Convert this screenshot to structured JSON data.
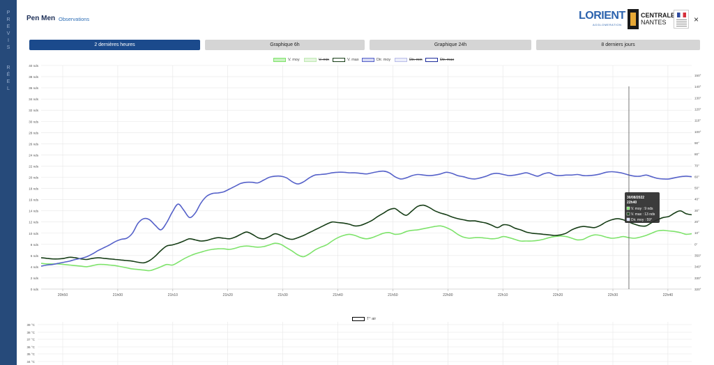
{
  "sidebar": {
    "label1": "PREVIS",
    "label2": "RÉEL"
  },
  "header": {
    "title": "Pen Men",
    "subtitle": "Observations",
    "logo_lorient": "LORIENT",
    "logo_lorient_sub": "AGGLOMERATION",
    "logo_centrale_1": "CENTRALE",
    "logo_centrale_2": "NANTES",
    "close_label": "×"
  },
  "tabs": [
    {
      "label": "2 dernières heures",
      "active": true
    },
    {
      "label": "Graphique 6h",
      "active": false
    },
    {
      "label": "Graphique 24h",
      "active": false
    },
    {
      "label": "8 derniers jours",
      "active": false
    }
  ],
  "chart_data": [
    {
      "type": "line",
      "legend_placement": "top-center",
      "grid": true,
      "x_tick_labels": [
        "20h50",
        "21h00",
        "21h10",
        "21h20",
        "21h30",
        "21h40",
        "21h50",
        "22h00",
        "22h10",
        "22h20",
        "22h30",
        "22h40"
      ],
      "y_left": {
        "unit": "nds",
        "ylim": [
          0,
          40
        ],
        "ticks": [
          0,
          2,
          4,
          6,
          8,
          10,
          12,
          14,
          16,
          18,
          20,
          22,
          24,
          26,
          28,
          30,
          32,
          34,
          36,
          38,
          40
        ],
        "tick_labels": [
          "0 nds",
          "2 nds",
          "4 nds",
          "6 nds",
          "8 nds",
          "10 nds",
          "12 nds",
          "14 nds",
          "16 nds",
          "18 nds",
          "20 nds",
          "22 nds",
          "24 nds",
          "26 nds",
          "28 nds",
          "30 nds",
          "32 nds",
          "34 nds",
          "36 nds",
          "38 nds",
          "40 nds"
        ]
      },
      "y_right": {
        "unit": "°",
        "tick_labels": [
          "320°",
          "330°",
          "340°",
          "350°",
          "0°",
          "10°",
          "20°",
          "30°",
          "40°",
          "50°",
          "60°",
          "70°",
          "80°",
          "90°",
          "100°",
          "110°",
          "120°",
          "130°",
          "140°",
          "150°"
        ]
      },
      "legend": [
        {
          "name": "V. moy",
          "color": "#7ee36b",
          "fill": "#c8f2bf",
          "hidden": false
        },
        {
          "name": "V. min",
          "color": "#bfe9b3",
          "fill": "#e4f5de",
          "hidden": true
        },
        {
          "name": "V. max",
          "color": "#163d16",
          "fill": "#ffffff",
          "hidden": false
        },
        {
          "name": "Dir. moy",
          "color": "#5561c9",
          "fill": "#d4d8f3",
          "hidden": false
        },
        {
          "name": "Dir. min",
          "color": "#b9bde9",
          "fill": "#eceefa",
          "hidden": true
        },
        {
          "name": "Dir. max",
          "color": "#1b2a9c",
          "fill": "#ffffff",
          "hidden": true
        }
      ],
      "series": [
        {
          "name": "V. moy",
          "color": "#7ee36b",
          "x": [
            0,
            1,
            2,
            3,
            4,
            5,
            6,
            7,
            8,
            9,
            10,
            11,
            12,
            13,
            14,
            15,
            16,
            17,
            18,
            19,
            20,
            21,
            22,
            23,
            24,
            25,
            26,
            27,
            28,
            29,
            30,
            31,
            32,
            33,
            34,
            35,
            36,
            37,
            38,
            39,
            40,
            41,
            42,
            43,
            44,
            45,
            46,
            47,
            48,
            49,
            50,
            51,
            52,
            53,
            54,
            55,
            56,
            57,
            58,
            59,
            60,
            61,
            62,
            63,
            64,
            65,
            66,
            67,
            68,
            69,
            70,
            71,
            72,
            73,
            74,
            75,
            76,
            77,
            78,
            79,
            80,
            81,
            82,
            83,
            84,
            85,
            86,
            87,
            88,
            89,
            90,
            91,
            92,
            93,
            94,
            95,
            96,
            97,
            98,
            99,
            100,
            101,
            102,
            103,
            104,
            105,
            106,
            107,
            108,
            109,
            110,
            111,
            112,
            113,
            114
          ],
          "values": [
            4.6,
            4.5,
            4.5,
            4.5,
            4.4,
            4.3,
            4.2,
            4.1,
            4.0,
            4.2,
            4.4,
            4.4,
            4.3,
            4.2,
            4.0,
            3.8,
            3.6,
            3.5,
            3.4,
            3.3,
            3.6,
            4.0,
            4.4,
            4.3,
            4.8,
            5.4,
            5.9,
            6.3,
            6.6,
            6.9,
            7.1,
            7.2,
            7.2,
            7.1,
            7.3,
            7.6,
            7.7,
            7.6,
            7.5,
            7.6,
            7.9,
            8.2,
            8.0,
            7.4,
            6.8,
            6.1,
            5.8,
            6.3,
            7.0,
            7.5,
            7.9,
            8.6,
            9.2,
            9.6,
            9.8,
            9.6,
            9.2,
            9.0,
            9.2,
            9.6,
            10.0,
            10.1,
            9.8,
            9.9,
            10.3,
            10.5,
            10.6,
            10.8,
            11.0,
            11.2,
            11.3,
            11.0,
            10.5,
            9.8,
            9.3,
            9.1,
            9.2,
            9.2,
            9.1,
            9.0,
            9.1,
            9.4,
            9.2,
            8.9,
            8.6,
            8.6,
            8.6,
            8.7,
            8.9,
            9.2,
            9.4,
            9.5,
            9.4,
            9.1,
            8.8,
            8.9,
            9.4,
            9.7,
            9.6,
            9.3,
            9.1,
            9.2,
            9.4,
            9.2,
            9.1,
            9.3,
            9.6,
            10.0,
            10.4,
            10.5,
            10.4,
            10.3,
            10.1,
            9.8,
            9.9
          ]
        },
        {
          "name": "V. max",
          "color": "#163d16",
          "x": [
            0,
            1,
            2,
            3,
            4,
            5,
            6,
            7,
            8,
            9,
            10,
            11,
            12,
            13,
            14,
            15,
            16,
            17,
            18,
            19,
            20,
            21,
            22,
            23,
            24,
            25,
            26,
            27,
            28,
            29,
            30,
            31,
            32,
            33,
            34,
            35,
            36,
            37,
            38,
            39,
            40,
            41,
            42,
            43,
            44,
            45,
            46,
            47,
            48,
            49,
            50,
            51,
            52,
            53,
            54,
            55,
            56,
            57,
            58,
            59,
            60,
            61,
            62,
            63,
            64,
            65,
            66,
            67,
            68,
            69,
            70,
            71,
            72,
            73,
            74,
            75,
            76,
            77,
            78,
            79,
            80,
            81,
            82,
            83,
            84,
            85,
            86,
            87,
            88,
            89,
            90,
            91,
            92,
            93,
            94,
            95,
            96,
            97,
            98,
            99,
            100,
            101,
            102,
            103,
            104,
            105,
            106,
            107,
            108,
            109,
            110,
            111,
            112,
            113,
            114
          ],
          "values": [
            5.6,
            5.5,
            5.4,
            5.4,
            5.5,
            5.7,
            5.6,
            5.4,
            5.3,
            5.5,
            5.6,
            5.5,
            5.4,
            5.3,
            5.2,
            5.1,
            5.0,
            4.8,
            4.7,
            5.1,
            5.9,
            6.9,
            7.7,
            7.9,
            8.2,
            8.6,
            9.0,
            8.8,
            8.6,
            8.7,
            9.0,
            9.2,
            9.1,
            9.0,
            9.3,
            9.8,
            10.2,
            9.8,
            9.2,
            9.0,
            9.4,
            9.9,
            9.6,
            9.1,
            8.9,
            9.2,
            9.6,
            10.1,
            10.6,
            11.1,
            11.6,
            12.0,
            11.9,
            11.8,
            11.6,
            11.3,
            11.4,
            11.8,
            12.3,
            13.0,
            13.6,
            14.2,
            14.4,
            13.7,
            13.2,
            14.0,
            14.8,
            15.0,
            14.6,
            14.0,
            13.6,
            13.3,
            12.9,
            12.6,
            12.4,
            12.2,
            12.2,
            12.0,
            11.8,
            11.4,
            11.0,
            11.5,
            11.4,
            10.9,
            10.6,
            10.2,
            10.0,
            9.9,
            9.8,
            9.7,
            9.6,
            9.7,
            10.0,
            10.6,
            11.0,
            11.2,
            11.1,
            11.0,
            11.4,
            12.0,
            12.4,
            12.6,
            12.4,
            12.0,
            11.6,
            11.3,
            11.3,
            11.9,
            12.4,
            12.8,
            13.0,
            13.6,
            14.0,
            13.5,
            13.3
          ]
        },
        {
          "name": "Dir. moy",
          "color": "#5561c9",
          "x": [
            0,
            1,
            2,
            3,
            4,
            5,
            6,
            7,
            8,
            9,
            10,
            11,
            12,
            13,
            14,
            15,
            16,
            17,
            18,
            19,
            20,
            21,
            22,
            23,
            24,
            25,
            26,
            27,
            28,
            29,
            30,
            31,
            32,
            33,
            34,
            35,
            36,
            37,
            38,
            39,
            40,
            41,
            42,
            43,
            44,
            45,
            46,
            47,
            48,
            49,
            50,
            51,
            52,
            53,
            54,
            55,
            56,
            57,
            58,
            59,
            60,
            61,
            62,
            63,
            64,
            65,
            66,
            67,
            68,
            69,
            70,
            71,
            72,
            73,
            74,
            75,
            76,
            77,
            78,
            79,
            80,
            81,
            82,
            83,
            84,
            85,
            86,
            87,
            88,
            89,
            90,
            91,
            92,
            93,
            94,
            95,
            96,
            97,
            98,
            99,
            100,
            101,
            102,
            103,
            104,
            105,
            106,
            107,
            108,
            109,
            110,
            111,
            112,
            113,
            114
          ],
          "values": [
            4.1,
            4.3,
            4.4,
            4.6,
            4.8,
            5.0,
            5.3,
            5.5,
            5.8,
            6.3,
            6.9,
            7.4,
            7.9,
            8.5,
            8.9,
            9.1,
            10.0,
            11.8,
            12.6,
            12.4,
            11.4,
            10.6,
            11.9,
            13.8,
            15.2,
            14.1,
            12.8,
            13.6,
            15.4,
            16.6,
            17.1,
            17.2,
            17.4,
            17.9,
            18.4,
            18.9,
            19.1,
            19.1,
            19.0,
            19.5,
            20.0,
            20.2,
            20.2,
            19.9,
            19.2,
            18.8,
            19.2,
            19.9,
            20.4,
            20.5,
            20.6,
            20.8,
            20.9,
            20.9,
            20.8,
            20.8,
            20.7,
            20.6,
            20.8,
            21.0,
            21.1,
            20.8,
            20.1,
            19.7,
            19.9,
            20.3,
            20.5,
            20.4,
            20.3,
            20.4,
            20.6,
            20.9,
            20.7,
            20.3,
            20.1,
            19.8,
            19.7,
            19.9,
            20.2,
            20.6,
            20.7,
            20.5,
            20.3,
            20.4,
            20.6,
            20.8,
            20.5,
            20.2,
            20.6,
            20.8,
            20.4,
            20.3,
            20.4,
            20.4,
            20.5,
            20.3,
            20.3,
            20.4,
            20.6,
            20.9,
            21.0,
            20.9,
            20.7,
            20.4,
            20.2,
            20.2,
            20.4,
            20.1,
            19.8,
            19.7,
            19.7,
            19.9,
            20.1,
            20.2,
            20.1
          ]
        }
      ],
      "tooltip": {
        "title": "30/08/2022",
        "time": "22h40",
        "lines": [
          "V. moy : 9 nds",
          "V. max : 13 nds",
          "Dir. moy : 59°"
        ]
      }
    },
    {
      "type": "line",
      "legend": [
        {
          "name": "T° air",
          "color": "#000000"
        }
      ],
      "y_left": {
        "unit": "°C",
        "tick_labels": [
          "34 °C",
          "35 °C",
          "36 °C",
          "37 °C",
          "38 °C",
          "39 °C"
        ]
      },
      "series": []
    }
  ]
}
